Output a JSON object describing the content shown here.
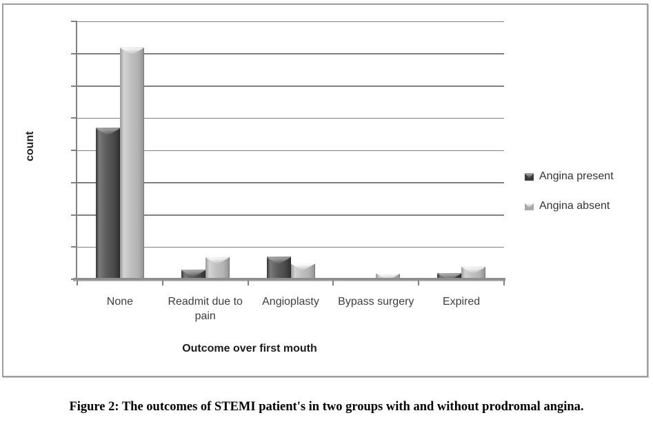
{
  "figure": {
    "caption": "Figure 2: The outcomes of STEMI patient's in two groups with and without prodromal angina."
  },
  "chart_data": {
    "type": "bar",
    "title": "",
    "categories": [
      "None",
      "Readmit due to pain",
      "Angioplasty",
      "Bypass surgery",
      "Expired"
    ],
    "series": [
      {
        "name": "Angina present",
        "values": [
          47,
          3,
          7,
          0,
          2
        ],
        "color": "#4f4f4f"
      },
      {
        "name": "Angina absent",
        "values": [
          72,
          7,
          5,
          2,
          4
        ],
        "color": "#b8b8b8"
      }
    ],
    "xlabel": "Outcome over first mouth",
    "ylabel": "count",
    "ylim": [
      0,
      80
    ],
    "gridline_interval": 10,
    "y_tick_labels_visible": false,
    "grid": true,
    "legend_position": "right",
    "grid_color": "#7f7f7f",
    "axis_color": "#8d8d8d"
  }
}
